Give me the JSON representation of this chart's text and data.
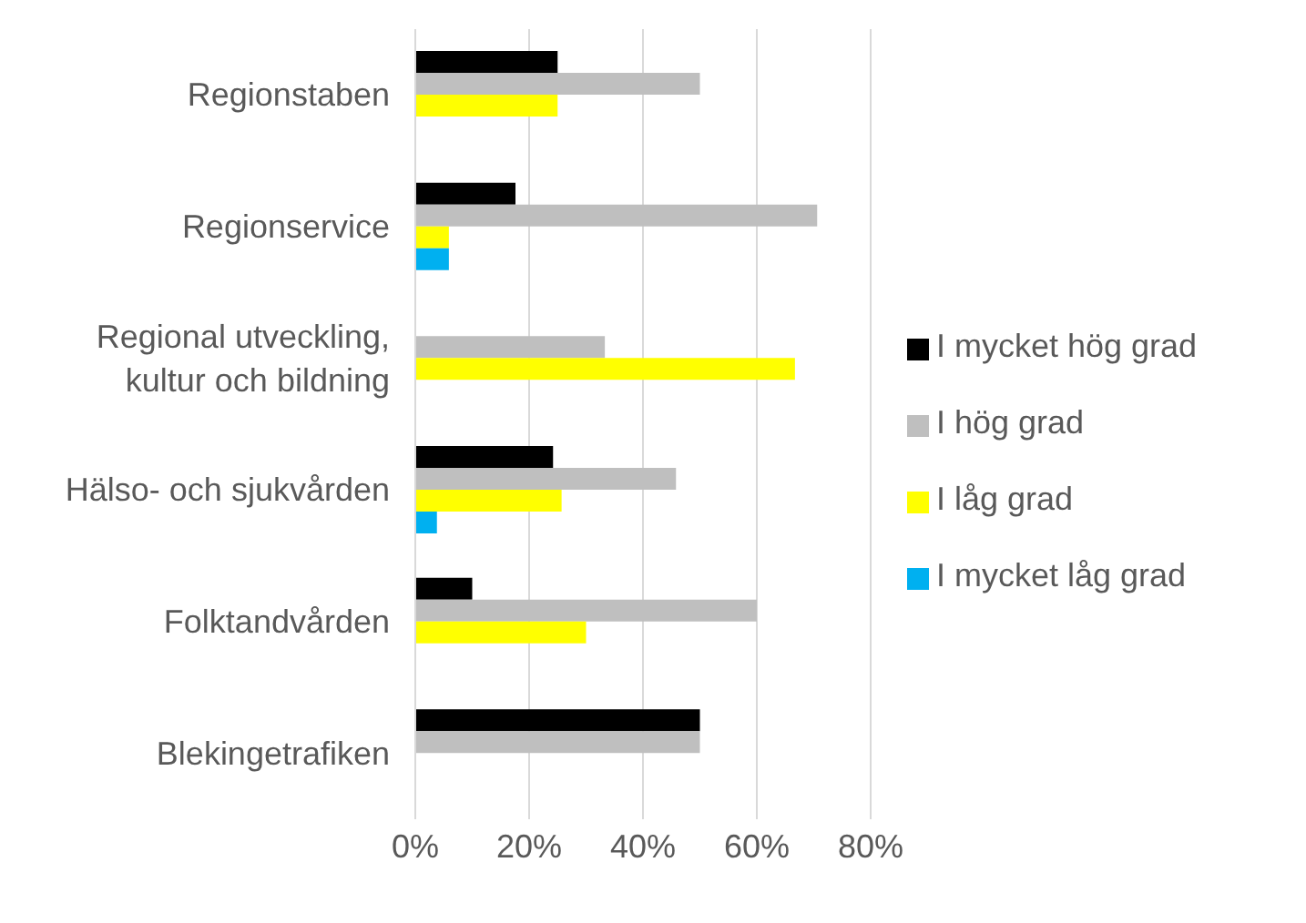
{
  "chart_data": {
    "type": "bar",
    "orientation": "horizontal",
    "categories": [
      "Regionstaben",
      "Regionservice",
      "Regional utveckling, kultur och bildning",
      "Hälso- och sjukvården",
      "Folktandvården",
      "Blekingetrafiken"
    ],
    "series": [
      {
        "name": "I mycket hög grad",
        "color": "#000000",
        "values": [
          25,
          17.6,
          null,
          24.2,
          10,
          50
        ]
      },
      {
        "name": "I hög grad",
        "color": "#bfbfbf",
        "values": [
          50,
          70.6,
          33.3,
          45.8,
          60,
          50
        ]
      },
      {
        "name": "I låg grad",
        "color": "#ffff00",
        "values": [
          25,
          5.9,
          66.7,
          25.7,
          30,
          null
        ]
      },
      {
        "name": "I mycket låg grad",
        "color": "#00b0f0",
        "values": [
          null,
          5.9,
          null,
          3.8,
          null,
          null
        ]
      }
    ],
    "xlim": [
      0,
      80
    ],
    "xticks": [
      {
        "value": 0,
        "label": "0%"
      },
      {
        "value": 20,
        "label": "20%"
      },
      {
        "value": 40,
        "label": "40%"
      },
      {
        "value": 60,
        "label": "60%"
      },
      {
        "value": 80,
        "label": "80%"
      }
    ],
    "grid": "x",
    "legend": "right"
  }
}
